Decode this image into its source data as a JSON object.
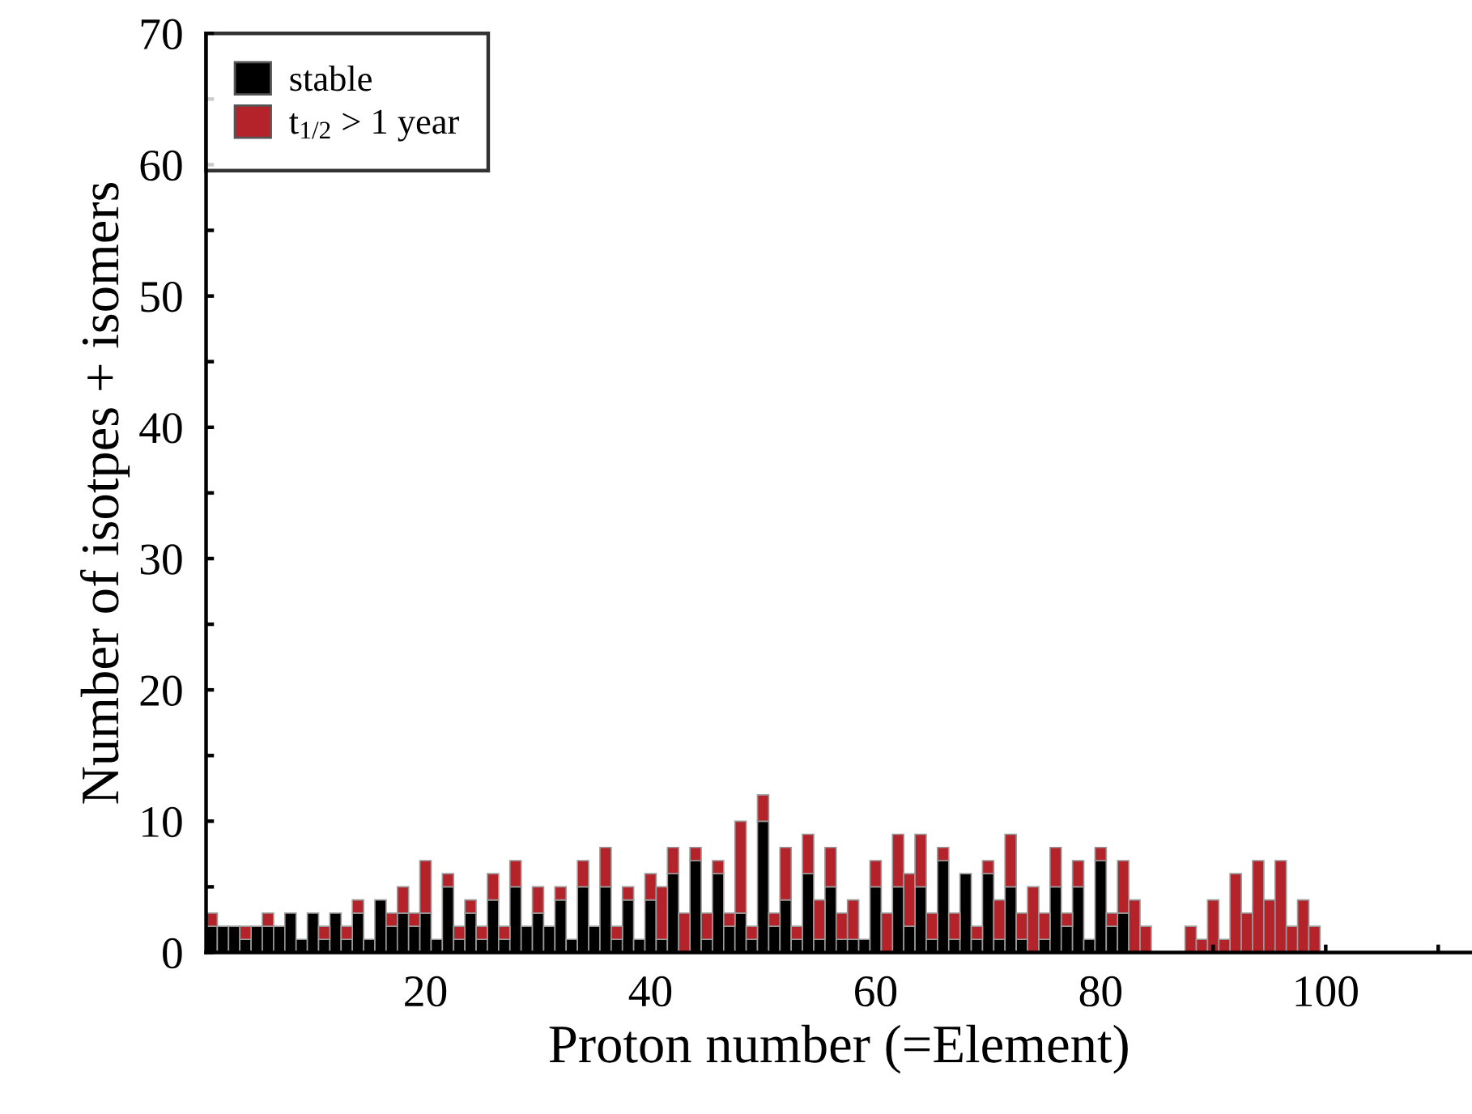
{
  "chart_data": {
    "type": "bar",
    "stacked": true,
    "xlabel": "Proton number (=Element)",
    "ylabel": "Number of isotpes + isomers",
    "x": [
      1,
      2,
      3,
      4,
      5,
      6,
      7,
      8,
      9,
      10,
      11,
      12,
      13,
      14,
      15,
      16,
      17,
      18,
      19,
      20,
      21,
      22,
      23,
      24,
      25,
      26,
      27,
      28,
      29,
      30,
      31,
      32,
      33,
      34,
      35,
      36,
      37,
      38,
      39,
      40,
      41,
      42,
      43,
      44,
      45,
      46,
      47,
      48,
      49,
      50,
      51,
      52,
      53,
      54,
      55,
      56,
      57,
      58,
      59,
      60,
      61,
      62,
      63,
      64,
      65,
      66,
      67,
      68,
      69,
      70,
      71,
      72,
      73,
      74,
      75,
      76,
      77,
      78,
      79,
      80,
      81,
      82,
      83,
      84,
      85,
      86,
      87,
      88,
      89,
      90,
      91,
      92,
      93,
      94,
      95,
      96,
      97,
      98,
      99
    ],
    "series": [
      {
        "name": "stable",
        "color": "#000000",
        "values": [
          2,
          2,
          2,
          1,
          2,
          2,
          2,
          3,
          1,
          3,
          1,
          3,
          1,
          3,
          1,
          4,
          2,
          3,
          2,
          3,
          1,
          5,
          1,
          3,
          1,
          4,
          1,
          5,
          2,
          3,
          2,
          4,
          1,
          5,
          2,
          5,
          1,
          4,
          1,
          4,
          1,
          6,
          0,
          7,
          1,
          6,
          2,
          3,
          1,
          10,
          2,
          4,
          1,
          6,
          1,
          5,
          1,
          1,
          1,
          5,
          0,
          5,
          2,
          5,
          1,
          7,
          1,
          6,
          1,
          6,
          1,
          5,
          1,
          0,
          1,
          5,
          2,
          5,
          1,
          7,
          2,
          3,
          0,
          0,
          0,
          0,
          0,
          0,
          0,
          0,
          0,
          0,
          0,
          0,
          0,
          0,
          0,
          0,
          0
        ]
      },
      {
        "name": "t$_{1/2}$ > 1 year",
        "color": "#b5232a",
        "values": [
          1,
          0,
          0,
          1,
          0,
          1,
          0,
          0,
          0,
          0,
          1,
          0,
          1,
          1,
          0,
          0,
          1,
          2,
          1,
          4,
          0,
          1,
          1,
          1,
          1,
          2,
          1,
          2,
          0,
          2,
          0,
          1,
          0,
          2,
          0,
          3,
          1,
          1,
          0,
          2,
          4,
          2,
          3,
          1,
          2,
          1,
          1,
          7,
          1,
          2,
          1,
          4,
          1,
          3,
          3,
          3,
          2,
          3,
          0,
          2,
          3,
          4,
          4,
          4,
          2,
          1,
          2,
          0,
          1,
          1,
          3,
          4,
          2,
          5,
          2,
          3,
          1,
          2,
          0,
          1,
          1,
          4,
          4,
          2,
          0,
          0,
          0,
          2,
          1,
          4,
          1,
          6,
          3,
          7,
          4,
          7,
          2,
          4,
          2
        ]
      }
    ],
    "xlim": [
      0.5,
      113
    ],
    "xticks": [
      {
        "value": 10,
        "label": null
      },
      20,
      {
        "value": 30,
        "label": null
      },
      40,
      {
        "value": 50,
        "label": null
      },
      60,
      {
        "value": 70,
        "label": null
      },
      80,
      {
        "value": 90,
        "label": null
      },
      100,
      {
        "value": 110,
        "label": null
      }
    ],
    "ylim": [
      0,
      70
    ],
    "yticks": [
      0,
      {
        "value": 5,
        "label": null
      },
      10,
      {
        "value": 15,
        "label": null
      },
      20,
      {
        "value": 25,
        "label": null
      },
      30,
      {
        "value": 35,
        "label": null
      },
      40,
      {
        "value": 45,
        "label": null
      },
      50,
      {
        "value": 55,
        "label": null
      },
      60,
      {
        "value": 65,
        "label": null
      },
      70
    ],
    "legend": "top left",
    "grid": false
  }
}
